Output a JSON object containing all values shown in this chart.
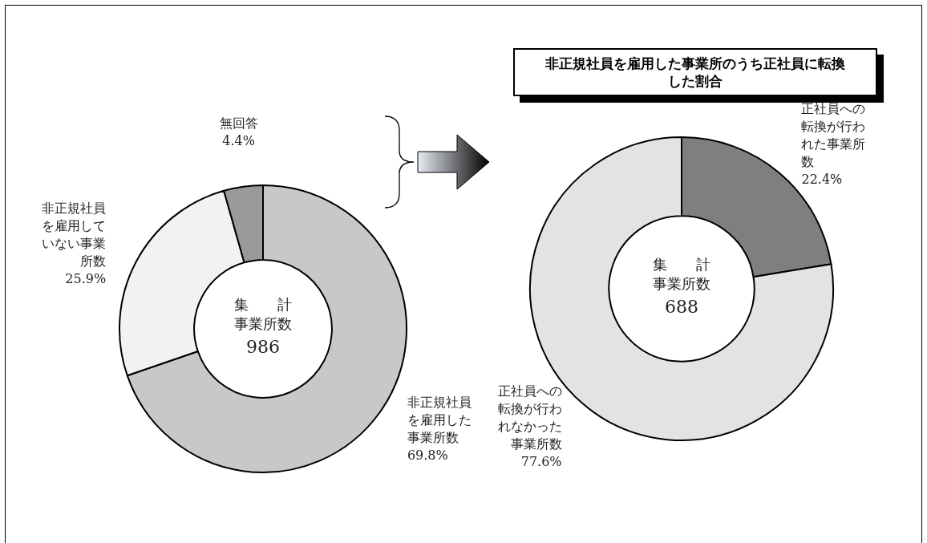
{
  "chart_data": [
    {
      "type": "donut",
      "categories": [
        "非正規社員を雇用した事業所数",
        "非正規社員を雇用していない事業所数",
        "無回答"
      ],
      "values": [
        69.8,
        25.9,
        4.4
      ],
      "value_labels": [
        "69.8%",
        "25.9%",
        "4.4%"
      ],
      "colors": [
        "#c8c8c8",
        "#f2f2f2",
        "#9a9a9a"
      ],
      "annotations": [
        "集　　計",
        "事業所数",
        "986"
      ]
    },
    {
      "type": "donut",
      "title": "非正規社員を雇用した事業所のうち正社員に転換した割合",
      "categories": [
        "正社員への転換が行われた事業所数",
        "正社員への転換が行われなかった事業所数"
      ],
      "values": [
        22.4,
        77.6
      ],
      "value_labels": [
        "22.4%",
        "77.6%"
      ],
      "colors": [
        "#7f7f7f",
        "#e3e3e3"
      ],
      "annotations": [
        "集　　計",
        "事業所数",
        "688"
      ]
    }
  ]
}
